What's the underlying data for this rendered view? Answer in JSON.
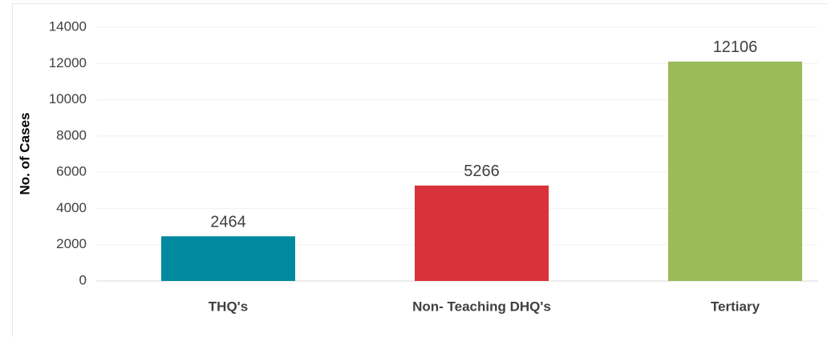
{
  "chart_data": {
    "type": "bar",
    "y_label": "No. of Cases",
    "categories": [
      "THQ's",
      "Non- Teaching DHQ's",
      "Tertiary"
    ],
    "values": [
      2464,
      5266,
      12106
    ],
    "colors": [
      "#00899f",
      "#d9323a",
      "#9bbb59"
    ],
    "ylim": [
      0,
      14000
    ],
    "yticks": [
      0,
      2000,
      4000,
      6000,
      8000,
      10000,
      12000,
      14000
    ],
    "grid": true
  }
}
